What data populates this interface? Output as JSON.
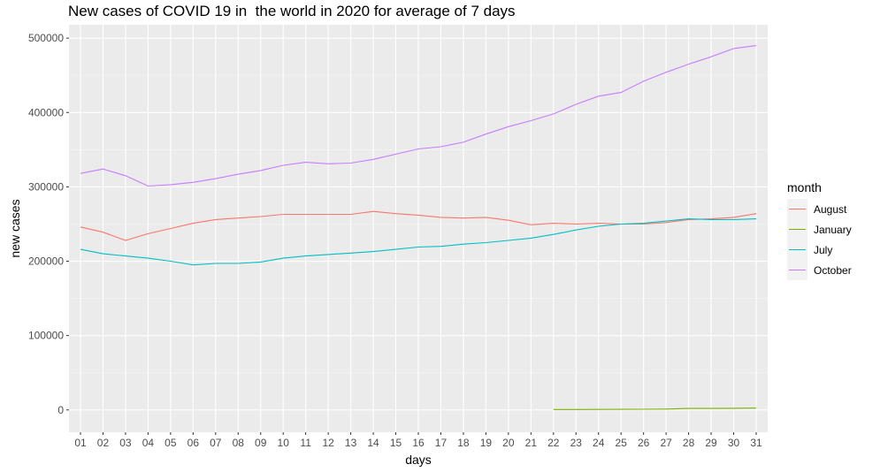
{
  "chart_data": {
    "type": "line",
    "title": "New cases of COVID 19 in  the world in 2020 for average of 7 days",
    "xlabel": "days",
    "ylabel": "new cases",
    "categories": [
      "01",
      "02",
      "03",
      "04",
      "05",
      "06",
      "07",
      "08",
      "09",
      "10",
      "11",
      "12",
      "13",
      "14",
      "15",
      "16",
      "17",
      "18",
      "19",
      "20",
      "21",
      "22",
      "23",
      "24",
      "25",
      "26",
      "27",
      "28",
      "29",
      "30",
      "31"
    ],
    "ylim": [
      -30000,
      518000
    ],
    "yticks": [
      0,
      100000,
      200000,
      300000,
      400000,
      500000
    ],
    "ytick_labels": [
      "0",
      "100000",
      "200000",
      "300000",
      "400000",
      "500000"
    ],
    "grid": true,
    "legend": {
      "title": "month",
      "position": "right"
    },
    "series": [
      {
        "name": "August",
        "color": "#F8766D",
        "values": [
          246000,
          239000,
          228000,
          237000,
          244000,
          251000,
          256000,
          258000,
          260000,
          263000,
          263000,
          263000,
          263000,
          267000,
          264000,
          262000,
          259000,
          258000,
          259000,
          255000,
          249000,
          251000,
          250000,
          251000,
          250000,
          250000,
          252000,
          256000,
          257000,
          259000,
          264000
        ]
      },
      {
        "name": "January",
        "color": "#7CAE00",
        "values": [
          null,
          null,
          null,
          null,
          null,
          null,
          null,
          null,
          null,
          null,
          null,
          null,
          null,
          null,
          null,
          null,
          null,
          null,
          null,
          null,
          null,
          500,
          600,
          700,
          800,
          900,
          1200,
          2000,
          2000,
          2200,
          2500
        ]
      },
      {
        "name": "July",
        "color": "#00BFC4",
        "values": [
          216000,
          210000,
          207000,
          204000,
          200000,
          195000,
          197000,
          197000,
          199000,
          204000,
          207000,
          209000,
          211000,
          213000,
          216000,
          219000,
          220000,
          223000,
          225000,
          228000,
          231000,
          236000,
          242000,
          247000,
          250000,
          251000,
          254000,
          257000,
          256000,
          256000,
          257000
        ]
      },
      {
        "name": "October",
        "color": "#C77CFF",
        "values": [
          318000,
          324000,
          315000,
          301000,
          303000,
          306000,
          311000,
          317000,
          322000,
          329000,
          333000,
          331000,
          332000,
          337000,
          344000,
          351000,
          354000,
          360000,
          371000,
          381000,
          389000,
          398000,
          411000,
          422000,
          427000,
          442000,
          454000,
          465000,
          475000,
          486000,
          490000
        ]
      }
    ]
  }
}
